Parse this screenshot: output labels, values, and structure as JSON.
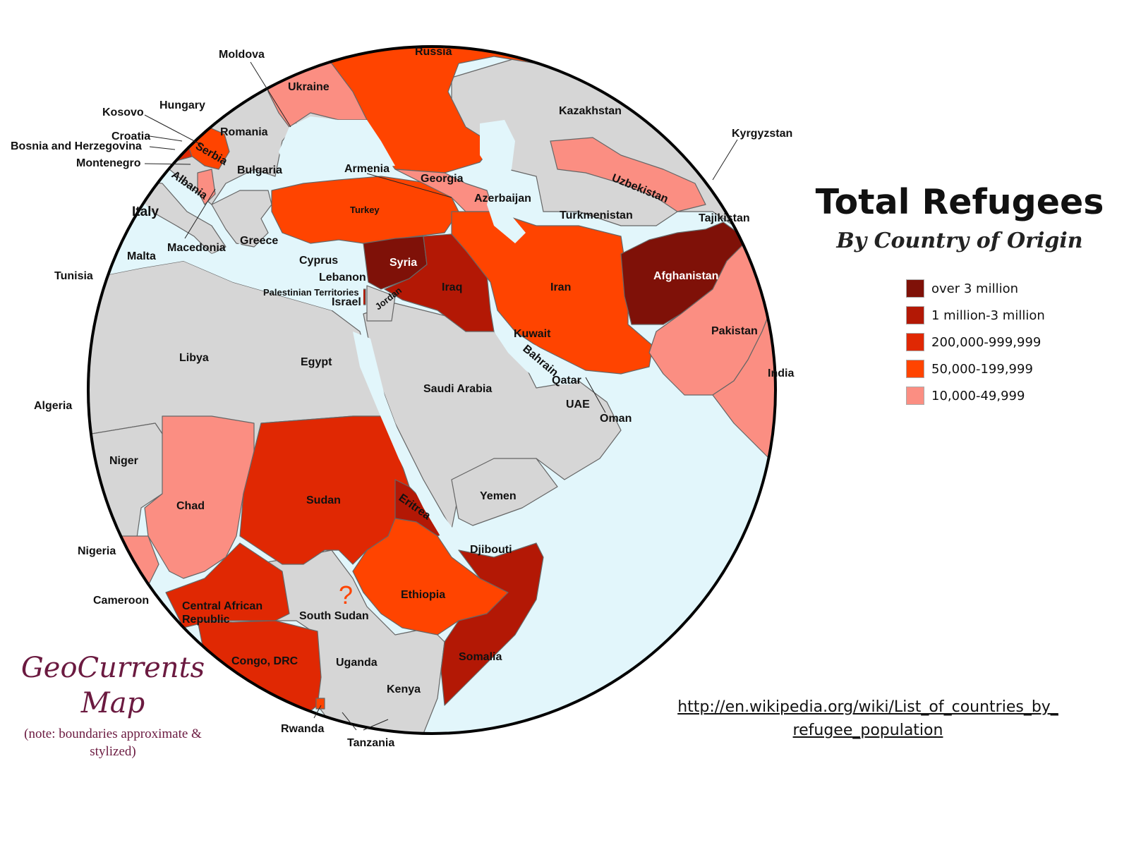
{
  "title": "Total Refugees",
  "subtitle": "By Country of Origin",
  "legend": [
    {
      "label": "over 3 million",
      "color": "#7f1108"
    },
    {
      "label": "1 million-3 million",
      "color": "#b31805"
    },
    {
      "label": "200,000-999,999",
      "color": "#e02803"
    },
    {
      "label": "50,000-199,999",
      "color": "#ff4400"
    },
    {
      "label": "10,000-49,999",
      "color": "#fb8e82"
    }
  ],
  "colors": {
    "sea": "#e2f6fb",
    "land": "#d6d6d6",
    "border": "#666666"
  },
  "source": {
    "line1": "http://en.wikipedia.org/wiki/List_of_countries_by_",
    "line2": "refugee_population"
  },
  "brand": {
    "line1": "GeoCurrents",
    "line2": "Map"
  },
  "note": {
    "line1": "(note: boundaries approximate &",
    "line2": "stylized)"
  },
  "countries": {
    "moldova": "Moldova",
    "russia": "Russia",
    "ukraine": "Ukraine",
    "kosovo": "Kosovo",
    "hungary": "Hungary",
    "romania": "Romania",
    "croatia": "Croatia",
    "bosnia": "Bosnia and Herzegovina",
    "serbia": "Serbia",
    "montenegro": "Montenegro",
    "bulgaria": "Bulgaria",
    "albania": "Albania",
    "italy": "Italy",
    "macedonia": "Macedonia",
    "greece": "Greece",
    "malta": "Malta",
    "tunisia": "Tunisia",
    "kazakhstan": "Kazakhstan",
    "kyrgyzstan": "Kyrgyzstan",
    "armenia": "Armenia",
    "georgia": "Georgia",
    "azerbaijan": "Azerbaijan",
    "uzbekistan": "Uzbekistan",
    "turkey": "Turkey",
    "turkmenistan": "Turkmenistan",
    "tajikistan": "Tajikistan",
    "cyprus": "Cyprus",
    "syria": "Syria",
    "lebanon": "Lebanon",
    "palestine": "Palestinian Territories",
    "israel": "Israel",
    "jordan": "Jordan",
    "iraq": "Iraq",
    "iran": "Iran",
    "afghanistan": "Afghanistan",
    "pakistan": "Pakistan",
    "kuwait": "Kuwait",
    "bahrain": "Bahrain",
    "libya": "Libya",
    "egypt": "Egypt",
    "saudi_arabia": "Saudi Arabia",
    "qatar": "Qatar",
    "india": "India",
    "algeria": "Algeria",
    "uae": "UAE",
    "oman": "Oman",
    "niger": "Niger",
    "yemen": "Yemen",
    "sudan": "Sudan",
    "eritrea": "Eritrea",
    "chad": "Chad",
    "djibouti": "Djibouti",
    "nigeria": "Nigeria",
    "ethiopia": "Ethiopia",
    "cameroon": "Cameroon",
    "car": "Central African Republic",
    "south_sudan": "South Sudan",
    "south_sudan_mark": "?",
    "somalia": "Somalia",
    "congo": "Congo, DRC",
    "uganda": "Uganda",
    "kenya": "Kenya",
    "rwanda": "Rwanda",
    "tanzania": "Tanzania"
  }
}
